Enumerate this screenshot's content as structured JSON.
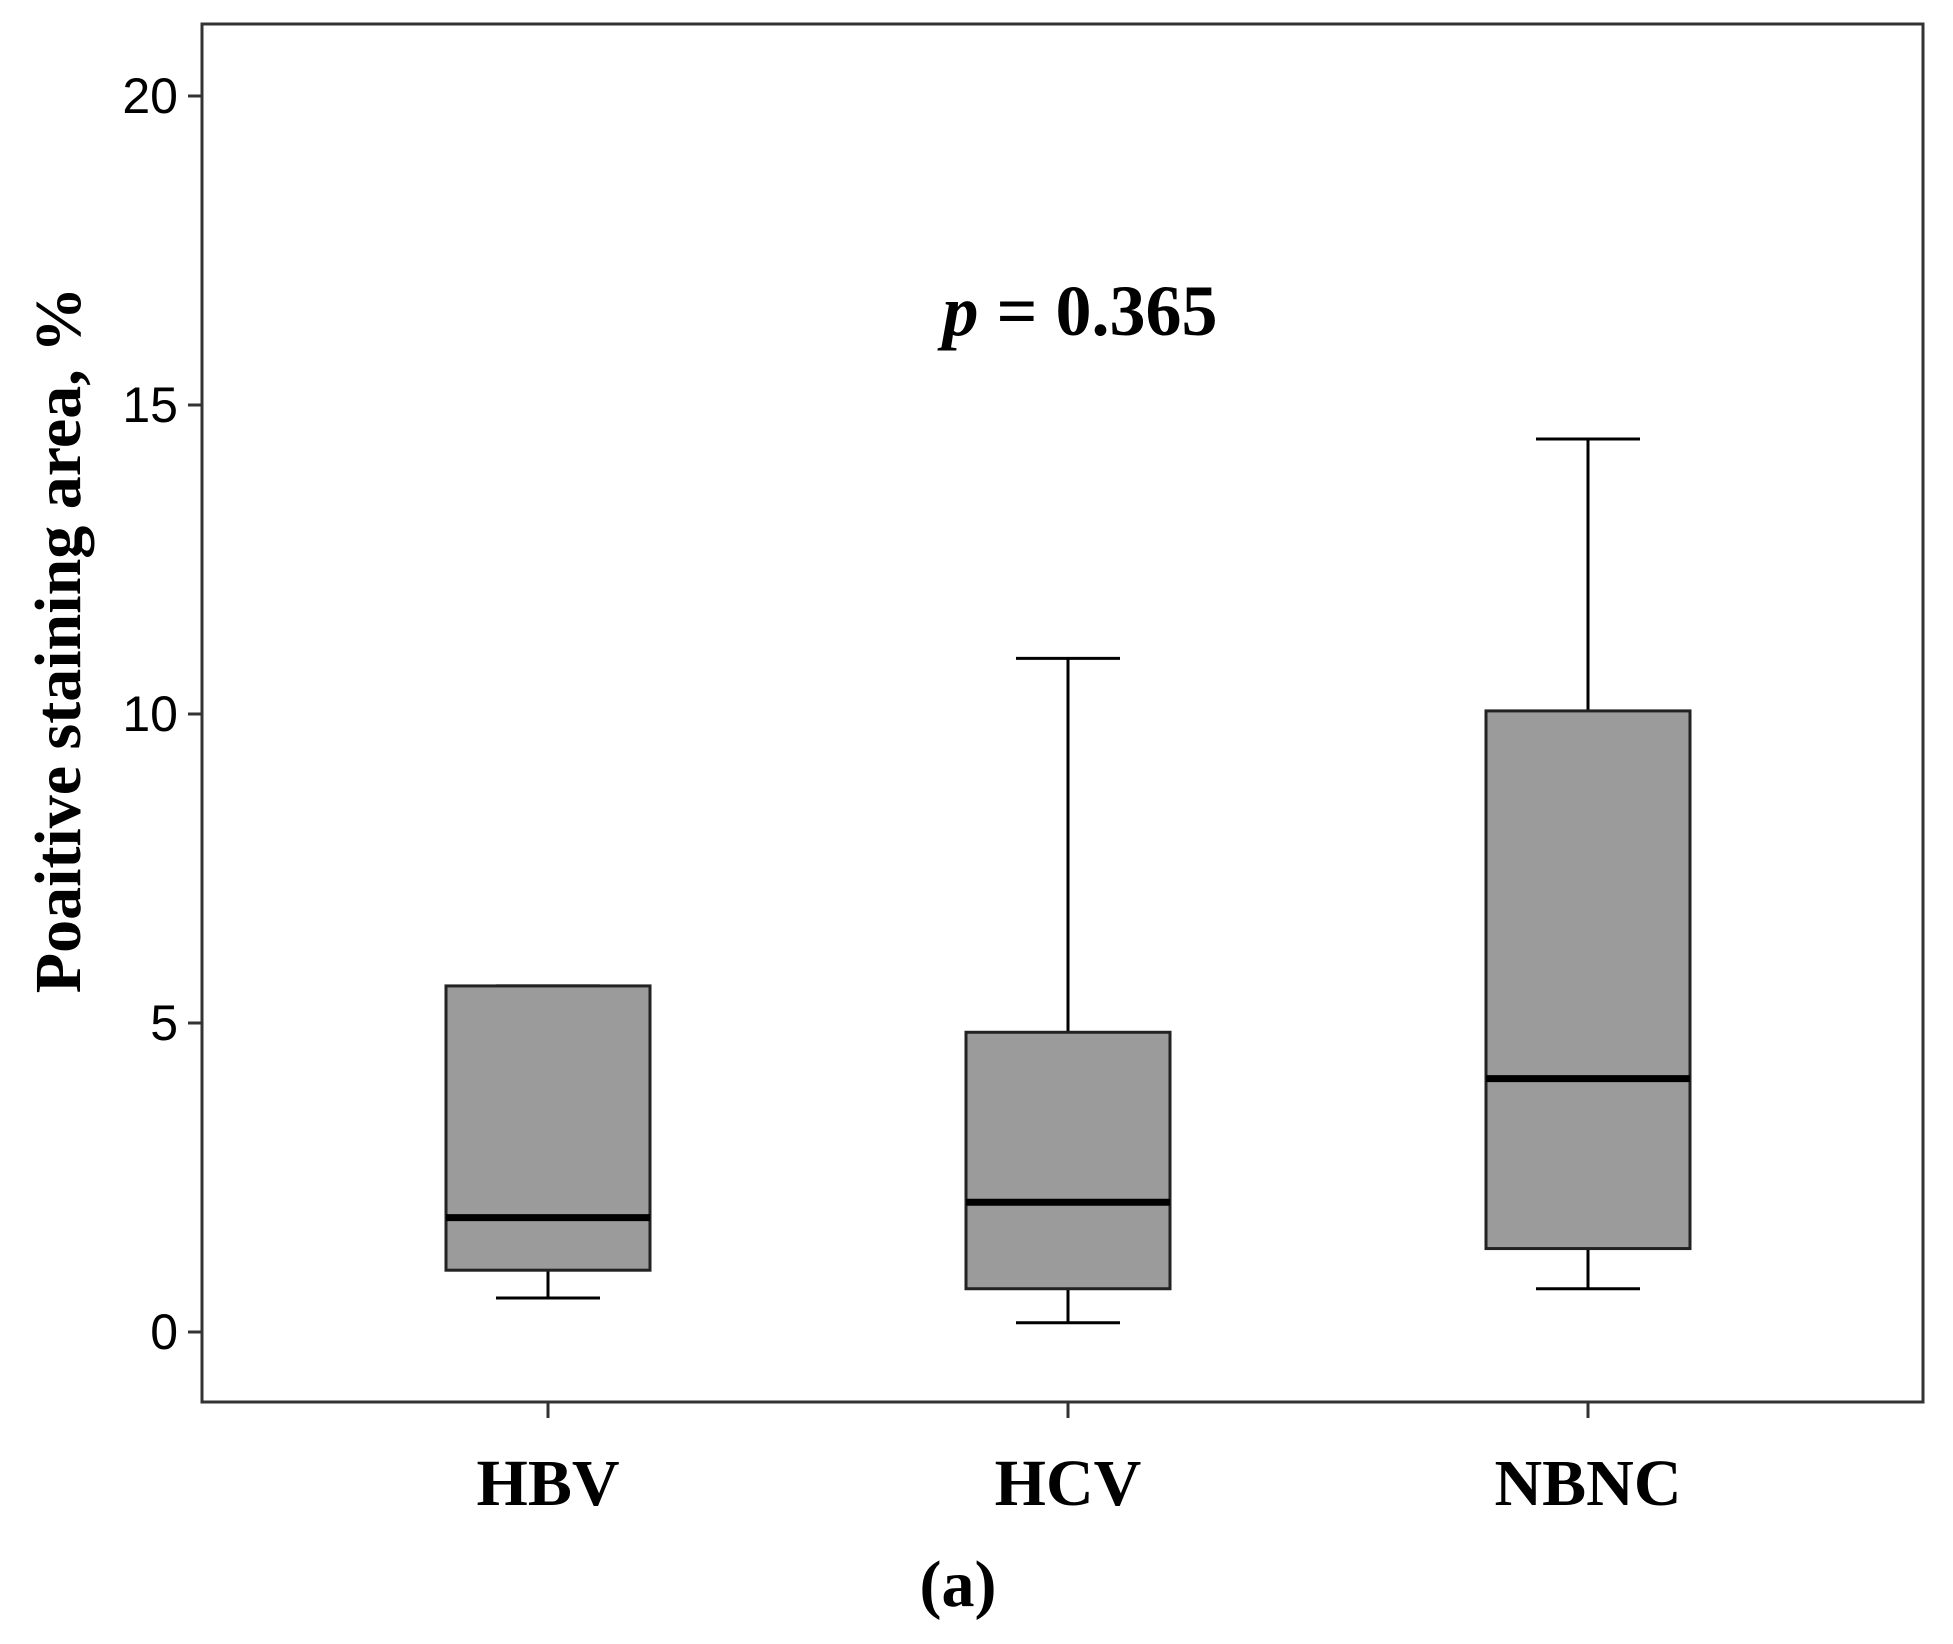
{
  "chart_data": {
    "type": "boxplot",
    "title": "",
    "xlabel": "",
    "ylabel": "Poaitive staining area, %",
    "ylim": [
      -1.2,
      21.2
    ],
    "yticks": [
      0,
      5,
      10,
      15,
      20
    ],
    "ytick_labels": [
      "0",
      "5",
      "10",
      "15",
      "20"
    ],
    "grid": false,
    "categories": [
      "HBV",
      "HCV",
      "NBNC"
    ],
    "boxes": [
      {
        "name": "HBV",
        "whisker_low": 0.55,
        "q1": 1.0,
        "median": 1.85,
        "q3": 5.6,
        "whisker_high": 5.6
      },
      {
        "name": "HCV",
        "whisker_low": 0.15,
        "q1": 0.7,
        "median": 2.1,
        "q3": 4.85,
        "whisker_high": 10.9
      },
      {
        "name": "NBNC",
        "whisker_low": 0.7,
        "q1": 1.35,
        "median": 4.1,
        "q3": 10.05,
        "whisker_high": 14.45
      }
    ],
    "annotation": {
      "p_symbol": "p",
      "p_rest": " = 0.365"
    },
    "panel_label": "(a)",
    "colors": {
      "box_fill": "#9b9b9b",
      "stroke": "#000000",
      "background": "#ffffff"
    }
  }
}
